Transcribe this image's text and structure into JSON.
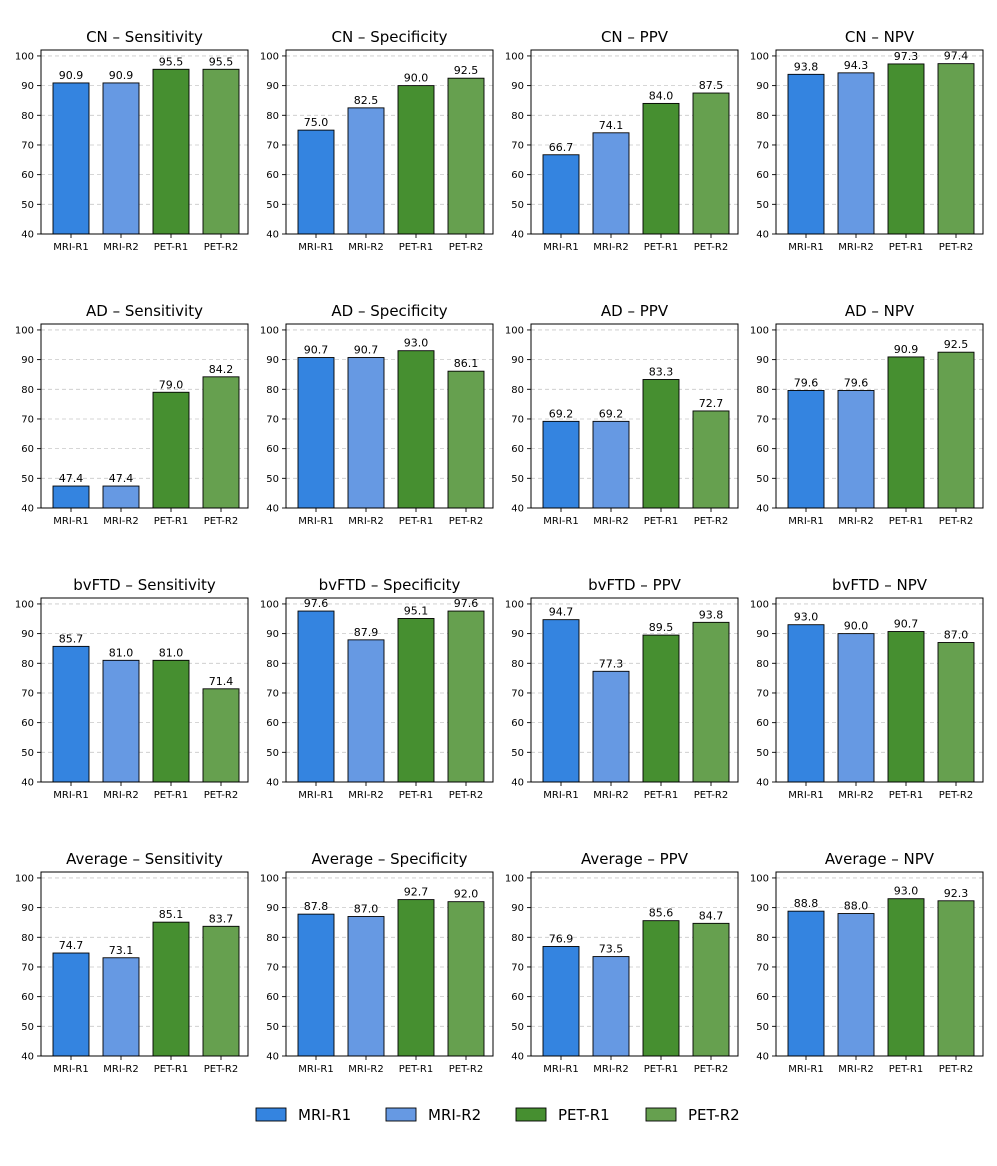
{
  "legend": [
    {
      "name": "MRI-R1",
      "color": "#3484E0"
    },
    {
      "name": "MRI-R2",
      "color": "#6699E3"
    },
    {
      "name": "PET-R1",
      "color": "#468F30"
    },
    {
      "name": "PET-R2",
      "color": "#66A04F"
    }
  ],
  "chart_data": [
    {
      "type": "bar",
      "title": "CN – Sensitivity",
      "categories": [
        "MRI-R1",
        "MRI-R2",
        "PET-R1",
        "PET-R2"
      ],
      "values": [
        90.9,
        90.9,
        95.5,
        95.5
      ],
      "labels": [
        "90.9",
        "90.9",
        "95.5",
        "95.5"
      ],
      "ylim": [
        40,
        102
      ],
      "yticks": [
        40,
        50,
        60,
        70,
        80,
        90,
        100
      ],
      "grid": true
    },
    {
      "type": "bar",
      "title": "CN – Specificity",
      "categories": [
        "MRI-R1",
        "MRI-R2",
        "PET-R1",
        "PET-R2"
      ],
      "values": [
        75.0,
        82.5,
        90.0,
        92.5
      ],
      "labels": [
        "75.0",
        "82.5",
        "90.0",
        "92.5"
      ],
      "ylim": [
        40,
        102
      ],
      "yticks": [
        40,
        50,
        60,
        70,
        80,
        90,
        100
      ],
      "grid": true
    },
    {
      "type": "bar",
      "title": "CN – PPV",
      "categories": [
        "MRI-R1",
        "MRI-R2",
        "PET-R1",
        "PET-R2"
      ],
      "values": [
        66.7,
        74.1,
        84.0,
        87.5
      ],
      "labels": [
        "66.7",
        "74.1",
        "84.0",
        "87.5"
      ],
      "ylim": [
        40,
        102
      ],
      "yticks": [
        40,
        50,
        60,
        70,
        80,
        90,
        100
      ],
      "grid": true
    },
    {
      "type": "bar",
      "title": "CN – NPV",
      "categories": [
        "MRI-R1",
        "MRI-R2",
        "PET-R1",
        "PET-R2"
      ],
      "values": [
        93.8,
        94.3,
        97.3,
        97.4
      ],
      "labels": [
        "93.8",
        "94.3",
        "97.3",
        "97.4"
      ],
      "ylim": [
        40,
        102
      ],
      "yticks": [
        40,
        50,
        60,
        70,
        80,
        90,
        100
      ],
      "grid": true
    },
    {
      "type": "bar",
      "title": "AD – Sensitivity",
      "categories": [
        "MRI-R1",
        "MRI-R2",
        "PET-R1",
        "PET-R2"
      ],
      "values": [
        47.4,
        47.4,
        79.0,
        84.2
      ],
      "labels": [
        "47.4",
        "47.4",
        "79.0",
        "84.2"
      ],
      "ylim": [
        40,
        102
      ],
      "yticks": [
        40,
        50,
        60,
        70,
        80,
        90,
        100
      ],
      "grid": true
    },
    {
      "type": "bar",
      "title": "AD – Specificity",
      "categories": [
        "MRI-R1",
        "MRI-R2",
        "PET-R1",
        "PET-R2"
      ],
      "values": [
        90.7,
        90.7,
        93.0,
        86.1
      ],
      "labels": [
        "90.7",
        "90.7",
        "93.0",
        "86.1"
      ],
      "ylim": [
        40,
        102
      ],
      "yticks": [
        40,
        50,
        60,
        70,
        80,
        90,
        100
      ],
      "grid": true
    },
    {
      "type": "bar",
      "title": "AD – PPV",
      "categories": [
        "MRI-R1",
        "MRI-R2",
        "PET-R1",
        "PET-R2"
      ],
      "values": [
        69.2,
        69.2,
        83.3,
        72.7
      ],
      "labels": [
        "69.2",
        "69.2",
        "83.3",
        "72.7"
      ],
      "ylim": [
        40,
        102
      ],
      "yticks": [
        40,
        50,
        60,
        70,
        80,
        90,
        100
      ],
      "grid": true
    },
    {
      "type": "bar",
      "title": "AD – NPV",
      "categories": [
        "MRI-R1",
        "MRI-R2",
        "PET-R1",
        "PET-R2"
      ],
      "values": [
        79.6,
        79.6,
        90.9,
        92.5
      ],
      "labels": [
        "79.6",
        "79.6",
        "90.9",
        "92.5"
      ],
      "ylim": [
        40,
        102
      ],
      "yticks": [
        40,
        50,
        60,
        70,
        80,
        90,
        100
      ],
      "grid": true
    },
    {
      "type": "bar",
      "title": "bvFTD – Sensitivity",
      "categories": [
        "MRI-R1",
        "MRI-R2",
        "PET-R1",
        "PET-R2"
      ],
      "values": [
        85.7,
        81.0,
        81.0,
        71.4
      ],
      "labels": [
        "85.7",
        "81.0",
        "81.0",
        "71.4"
      ],
      "ylim": [
        40,
        102
      ],
      "yticks": [
        40,
        50,
        60,
        70,
        80,
        90,
        100
      ],
      "grid": true
    },
    {
      "type": "bar",
      "title": "bvFTD – Specificity",
      "categories": [
        "MRI-R1",
        "MRI-R2",
        "PET-R1",
        "PET-R2"
      ],
      "values": [
        97.6,
        87.9,
        95.1,
        97.6
      ],
      "labels": [
        "97.6",
        "87.9",
        "95.1",
        "97.6"
      ],
      "ylim": [
        40,
        102
      ],
      "yticks": [
        40,
        50,
        60,
        70,
        80,
        90,
        100
      ],
      "grid": true
    },
    {
      "type": "bar",
      "title": "bvFTD – PPV",
      "categories": [
        "MRI-R1",
        "MRI-R2",
        "PET-R1",
        "PET-R2"
      ],
      "values": [
        94.7,
        77.3,
        89.5,
        93.8
      ],
      "labels": [
        "94.7",
        "77.3",
        "89.5",
        "93.8"
      ],
      "ylim": [
        40,
        102
      ],
      "yticks": [
        40,
        50,
        60,
        70,
        80,
        90,
        100
      ],
      "grid": true
    },
    {
      "type": "bar",
      "title": "bvFTD – NPV",
      "categories": [
        "MRI-R1",
        "MRI-R2",
        "PET-R1",
        "PET-R2"
      ],
      "values": [
        93.0,
        90.0,
        90.7,
        87.0
      ],
      "labels": [
        "93.0",
        "90.0",
        "90.7",
        "87.0"
      ],
      "ylim": [
        40,
        102
      ],
      "yticks": [
        40,
        50,
        60,
        70,
        80,
        90,
        100
      ],
      "grid": true
    },
    {
      "type": "bar",
      "title": "Average – Sensitivity",
      "categories": [
        "MRI-R1",
        "MRI-R2",
        "PET-R1",
        "PET-R2"
      ],
      "values": [
        74.7,
        73.1,
        85.1,
        83.7
      ],
      "labels": [
        "74.7",
        "73.1",
        "85.1",
        "83.7"
      ],
      "ylim": [
        40,
        102
      ],
      "yticks": [
        40,
        50,
        60,
        70,
        80,
        90,
        100
      ],
      "grid": true
    },
    {
      "type": "bar",
      "title": "Average – Specificity",
      "categories": [
        "MRI-R1",
        "MRI-R2",
        "PET-R1",
        "PET-R2"
      ],
      "values": [
        87.8,
        87.0,
        92.7,
        92.0
      ],
      "labels": [
        "87.8",
        "87.0",
        "92.7",
        "92.0"
      ],
      "ylim": [
        40,
        102
      ],
      "yticks": [
        40,
        50,
        60,
        70,
        80,
        90,
        100
      ],
      "grid": true
    },
    {
      "type": "bar",
      "title": "Average – PPV",
      "categories": [
        "MRI-R1",
        "MRI-R2",
        "PET-R1",
        "PET-R2"
      ],
      "values": [
        76.9,
        73.5,
        85.6,
        84.7
      ],
      "labels": [
        "76.9",
        "73.5",
        "85.6",
        "84.7"
      ],
      "ylim": [
        40,
        102
      ],
      "yticks": [
        40,
        50,
        60,
        70,
        80,
        90,
        100
      ],
      "grid": true
    },
    {
      "type": "bar",
      "title": "Average – NPV",
      "categories": [
        "MRI-R1",
        "MRI-R2",
        "PET-R1",
        "PET-R2"
      ],
      "values": [
        88.8,
        88.0,
        93.0,
        92.3
      ],
      "labels": [
        "88.8",
        "88.0",
        "93.0",
        "92.3"
      ],
      "ylim": [
        40,
        102
      ],
      "yticks": [
        40,
        50,
        60,
        70,
        80,
        90,
        100
      ],
      "grid": true
    }
  ]
}
